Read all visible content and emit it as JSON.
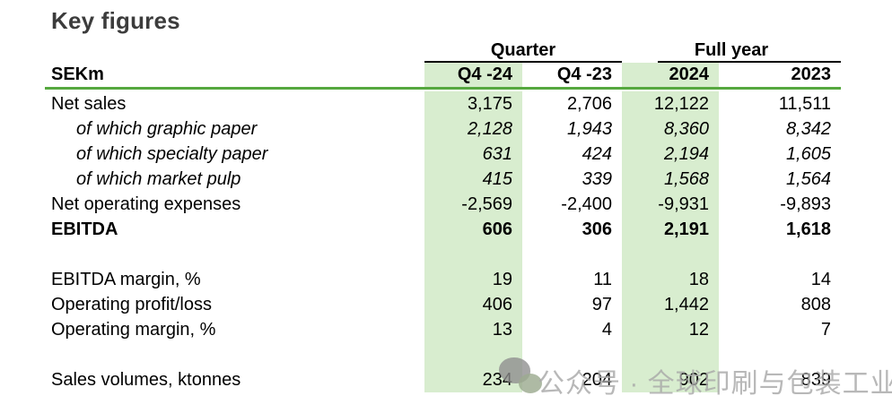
{
  "title": "Key figures",
  "table": {
    "unit_label": "SEKm",
    "column_groups": [
      {
        "label": "Quarter",
        "span": 2
      },
      {
        "label": "Full year",
        "span": 2
      }
    ],
    "columns": [
      "Q4 -24",
      "Q4 -23",
      "2024",
      "2023"
    ],
    "highlighted_columns": [
      "Q4 -24",
      "2024"
    ],
    "rows": [
      {
        "label": "Net sales",
        "values": [
          "3,175",
          "2,706",
          "12,122",
          "11,511"
        ],
        "style": "normal"
      },
      {
        "label": "of which graphic paper",
        "values": [
          "2,128",
          "1,943",
          "8,360",
          "8,342"
        ],
        "style": "italic"
      },
      {
        "label": "of which specialty paper",
        "values": [
          "631",
          "424",
          "2,194",
          "1,605"
        ],
        "style": "italic"
      },
      {
        "label": "of which market pulp",
        "values": [
          "415",
          "339",
          "1,568",
          "1,564"
        ],
        "style": "italic"
      },
      {
        "label": "Net operating expenses",
        "values": [
          "-2,569",
          "-2,400",
          "-9,931",
          "-9,893"
        ],
        "style": "normal"
      },
      {
        "label": "EBITDA",
        "values": [
          "606",
          "306",
          "2,191",
          "1,618"
        ],
        "style": "bold"
      },
      {
        "label": "",
        "values": [
          "",
          "",
          "",
          ""
        ],
        "style": "blank"
      },
      {
        "label": "EBITDA margin, %",
        "values": [
          "19",
          "11",
          "18",
          "14"
        ],
        "style": "normal"
      },
      {
        "label": "Operating profit/loss",
        "values": [
          "406",
          "97",
          "1,442",
          "808"
        ],
        "style": "normal"
      },
      {
        "label": "Operating margin, %",
        "values": [
          "13",
          "4",
          "12",
          "7"
        ],
        "style": "normal"
      },
      {
        "label": "",
        "values": [
          "",
          "",
          "",
          ""
        ],
        "style": "blank"
      },
      {
        "label": "Sales volumes, ktonnes",
        "values": [
          "234",
          "204",
          "902",
          "839"
        ],
        "style": "normal"
      }
    ]
  },
  "watermark": {
    "text": "公众号 · 全球印刷与包装工业",
    "icon": "wechat-chat-bubbles-icon"
  },
  "colors": {
    "column_highlight_green": "#d8edcf",
    "divider_green": "#56a83f",
    "header_underline_black": "#000000",
    "title_text": "#3c3c3c",
    "watermark_gray": "#a9a9a9"
  }
}
